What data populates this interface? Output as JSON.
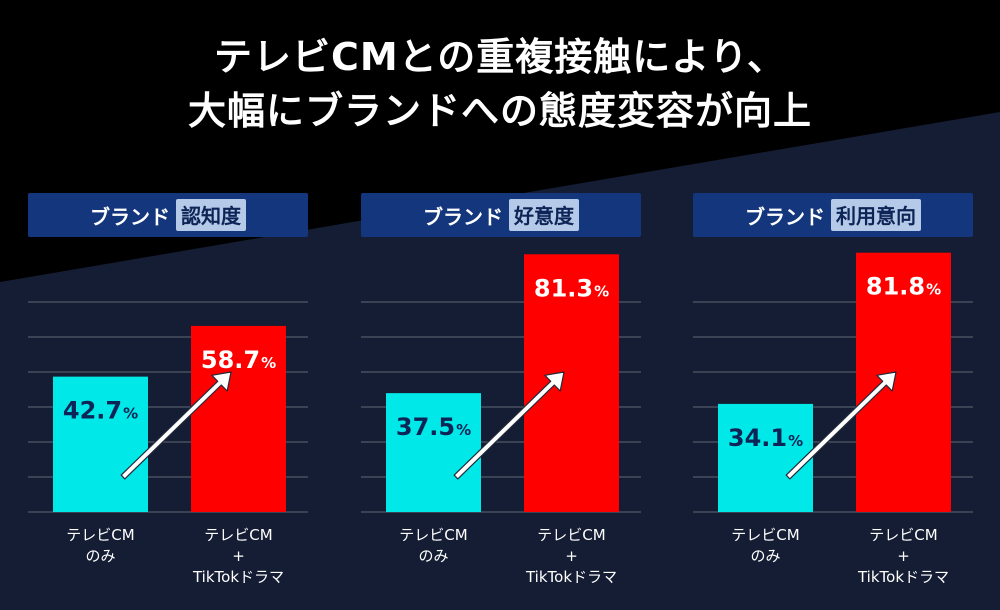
{
  "title": {
    "line1": "テレビCMとの重複接触により、",
    "line2": "大幅にブランドへの態度変容が向上"
  },
  "colors": {
    "background_top": "#000000",
    "background_bottom": "#141d33",
    "header_bg": "#14367c",
    "highlight_bg": "#b5c9e8",
    "tv_only_bar": "#00e8e8",
    "tv_tiktok_bar": "#ff0000",
    "arrow": "#ffffff"
  },
  "chart_data": [
    {
      "type": "bar",
      "header_prefix": "ブランド",
      "metric": "認知度",
      "categories": [
        [
          "テレビCM",
          "のみ"
        ],
        [
          "テレビCM",
          "+",
          "TikTokドラマ"
        ]
      ],
      "values": [
        42.7,
        58.7
      ],
      "value_labels": [
        "42.7",
        "58.7"
      ],
      "unit": "%",
      "ylim": [
        0,
        100
      ],
      "grid": true
    },
    {
      "type": "bar",
      "header_prefix": "ブランド",
      "metric": "好意度",
      "categories": [
        [
          "テレビCM",
          "のみ"
        ],
        [
          "テレビCM",
          "+",
          "TikTokドラマ"
        ]
      ],
      "values": [
        37.5,
        81.3
      ],
      "value_labels": [
        "37.5",
        "81.3"
      ],
      "unit": "%",
      "ylim": [
        0,
        100
      ],
      "grid": true
    },
    {
      "type": "bar",
      "header_prefix": "ブランド",
      "metric": "利用意向",
      "categories": [
        [
          "テレビCM",
          "のみ"
        ],
        [
          "テレビCM",
          "+",
          "TikTokドラマ"
        ]
      ],
      "values": [
        34.1,
        81.8
      ],
      "value_labels": [
        "34.1",
        "81.8"
      ],
      "unit": "%",
      "ylim": [
        0,
        100
      ],
      "grid": true
    }
  ]
}
